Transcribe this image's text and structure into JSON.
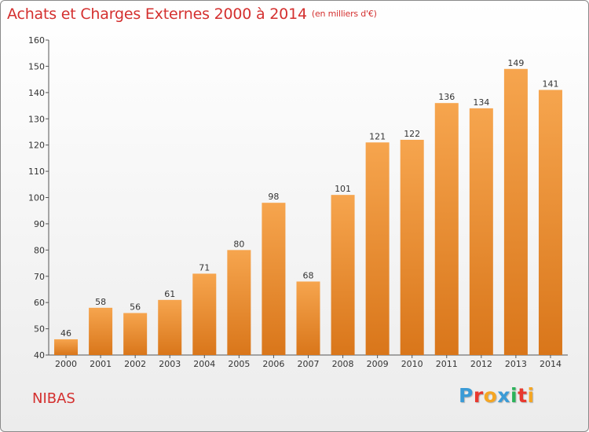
{
  "title": "Achats et Charges Externes 2000 à 2014",
  "subtitle": "(en milliers d'€)",
  "commune": "NIBAS",
  "logo": {
    "letters": [
      "P",
      "r",
      "o",
      "x",
      "i",
      "t",
      "i"
    ],
    "colors": [
      "#3b9bd6",
      "#e8392f",
      "#f5a623",
      "#3b9bd6",
      "#2bb35a",
      "#e8392f",
      "#f5a623"
    ]
  },
  "colors": {
    "bar_top": "#f6a54e",
    "bar_bottom": "#d9761a",
    "title": "#d4302f"
  },
  "chart_data": {
    "type": "bar",
    "categories": [
      "2000",
      "2001",
      "2002",
      "2003",
      "2004",
      "2005",
      "2006",
      "2007",
      "2008",
      "2009",
      "2010",
      "2011",
      "2012",
      "2013",
      "2014"
    ],
    "values": [
      46,
      58,
      56,
      61,
      71,
      80,
      98,
      68,
      101,
      121,
      122,
      136,
      134,
      149,
      141
    ],
    "ylim": [
      40,
      160
    ],
    "yticks": [
      40,
      50,
      60,
      70,
      80,
      90,
      100,
      110,
      120,
      130,
      140,
      150,
      160
    ],
    "grid": false
  }
}
